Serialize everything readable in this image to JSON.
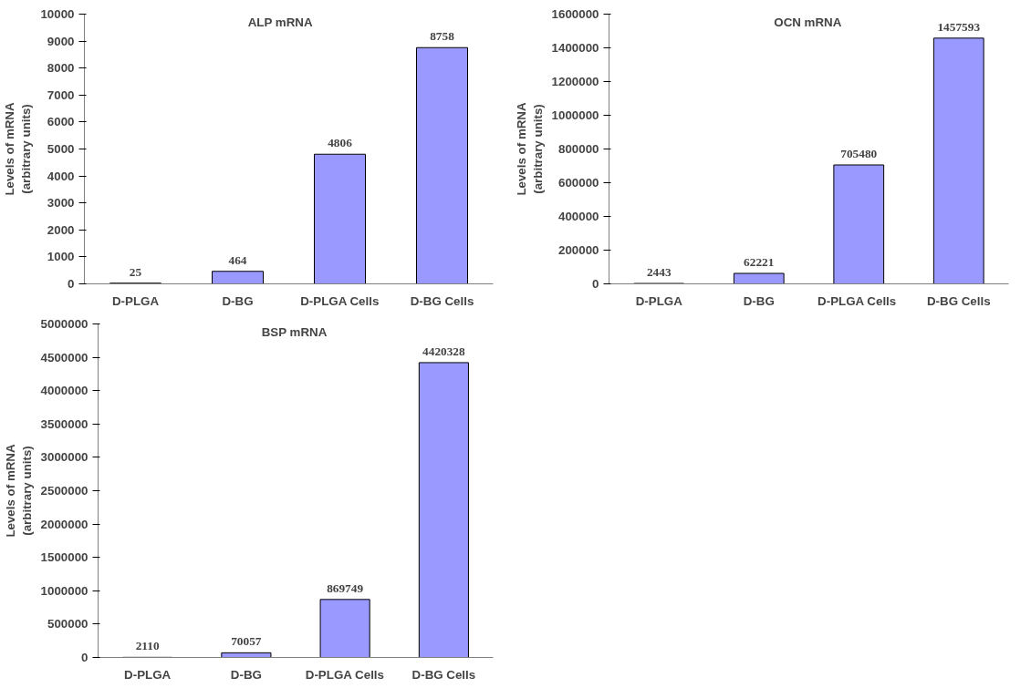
{
  "chart_data": [
    {
      "type": "bar",
      "title": "ALP mRNA",
      "ylabel": "Levels of mRNA\n(arbitrary units)",
      "categories": [
        "D-PLGA",
        "D-BG",
        "D-PLGA Cells",
        "D-BG Cells"
      ],
      "values": [
        25,
        464,
        4806,
        8758
      ],
      "color": "#9999ff",
      "ylim": [
        0,
        10000
      ],
      "yticks": [
        0,
        1000,
        2000,
        3000,
        4000,
        5000,
        6000,
        7000,
        8000,
        9000,
        10000
      ],
      "data_labels": true,
      "grid": false
    },
    {
      "type": "bar",
      "title": "OCN mRNA",
      "ylabel": "Levels of mRNA\n(arbitrary units)",
      "categories": [
        "D-PLGA",
        "D-BG",
        "D-PLGA  Cells",
        "D-BG Cells"
      ],
      "values": [
        2443,
        62221,
        705480,
        1457593
      ],
      "color": "#9999ff",
      "ylim": [
        0,
        1600000
      ],
      "yticks": [
        0,
        200000,
        400000,
        600000,
        800000,
        1000000,
        1200000,
        1400000,
        1600000
      ],
      "data_labels": true,
      "grid": false
    },
    {
      "type": "bar",
      "title": "BSP mRNA",
      "ylabel": "Levels of mRNA\n(arbitrary units)",
      "categories": [
        "D-PLGA",
        "D-BG",
        "D-PLGA Cells",
        "D-BG Cells"
      ],
      "values": [
        2110,
        70057,
        869749,
        4420328
      ],
      "color": "#9999ff",
      "ylim": [
        0,
        5000000
      ],
      "yticks": [
        0,
        500000,
        1000000,
        1500000,
        2000000,
        2500000,
        3000000,
        3500000,
        4000000,
        4500000,
        5000000
      ],
      "data_labels": true,
      "grid": false
    }
  ]
}
